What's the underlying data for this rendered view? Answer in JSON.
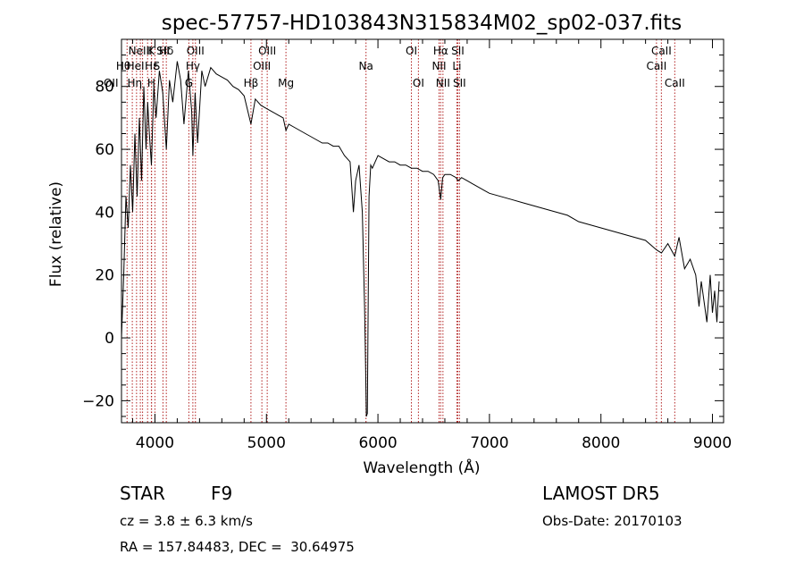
{
  "chart_data": {
    "type": "line",
    "title": "spec-57757-HD103843N315834M02_sp02-037.fits",
    "xlabel": "Wavelength (Å)",
    "ylabel": "Flux (relative)",
    "xlim": [
      3700,
      9100
    ],
    "ylim": [
      -27,
      95
    ],
    "x_ticks": [
      4000,
      5000,
      6000,
      7000,
      8000,
      9000
    ],
    "y_ticks": [
      -20,
      0,
      20,
      40,
      60,
      80
    ],
    "line_color": "#000000",
    "marker_color": "#b22222",
    "grid": false,
    "series": [
      {
        "x": [
          3700,
          3720,
          3740,
          3760,
          3780,
          3800,
          3820,
          3840,
          3860,
          3880,
          3900,
          3920,
          3935,
          3950,
          3968,
          3990,
          4010,
          4040,
          4070,
          4102,
          4130,
          4160,
          4200,
          4230,
          4260,
          4300,
          4330,
          4340,
          4360,
          4383,
          4420,
          4450,
          4500,
          4550,
          4600,
          4650,
          4700,
          4750,
          4800,
          4861,
          4900,
          4950,
          5000,
          5050,
          5100,
          5150,
          5175,
          5200,
          5250,
          5300,
          5350,
          5400,
          5450,
          5500,
          5550,
          5600,
          5650,
          5700,
          5750,
          5780,
          5800,
          5830,
          5860,
          5880,
          5890,
          5896,
          5905,
          5920,
          5935,
          5950,
          6000,
          6050,
          6100,
          6150,
          6200,
          6250,
          6300,
          6350,
          6400,
          6450,
          6500,
          6540,
          6563,
          6580,
          6600,
          6650,
          6700,
          6720,
          6750,
          6800,
          6850,
          6900,
          6950,
          7000,
          7100,
          7200,
          7300,
          7400,
          7500,
          7600,
          7700,
          7800,
          7900,
          8000,
          8100,
          8200,
          8300,
          8400,
          8498,
          8542,
          8600,
          8662,
          8700,
          8750,
          8800,
          8850,
          8880,
          8900,
          8950,
          8980,
          9000,
          9020,
          9040,
          9060
        ],
        "y": [
          0,
          20,
          45,
          35,
          55,
          40,
          65,
          45,
          70,
          50,
          80,
          60,
          75,
          65,
          55,
          80,
          70,
          85,
          78,
          60,
          82,
          75,
          88,
          82,
          68,
          85,
          72,
          58,
          78,
          62,
          85,
          80,
          86,
          84,
          83,
          82,
          80,
          79,
          77,
          68,
          76,
          74,
          73,
          72,
          71,
          70,
          66,
          68,
          67,
          66,
          65,
          64,
          63,
          62,
          62,
          61,
          61,
          58,
          56,
          40,
          50,
          55,
          40,
          10,
          -10,
          -25,
          -24,
          45,
          55,
          54,
          58,
          57,
          56,
          56,
          55,
          55,
          54,
          54,
          53,
          53,
          52,
          50,
          44,
          51,
          52,
          52,
          51,
          50,
          51,
          50,
          49,
          48,
          47,
          46,
          45,
          44,
          43,
          42,
          41,
          40,
          39,
          37,
          36,
          35,
          34,
          33,
          32,
          31,
          28,
          27,
          30,
          26,
          32,
          22,
          25,
          20,
          10,
          18,
          5,
          20,
          8,
          15,
          5,
          18
        ]
      }
    ],
    "lines": [
      {
        "x": 3750,
        "label": "OII",
        "row": 2,
        "dx": -18
      },
      {
        "x": 3797,
        "label": "Hθ",
        "row": 1,
        "dx": -10
      },
      {
        "x": 3835,
        "label": "Hη",
        "row": 2,
        "dx": -2
      },
      {
        "x": 3869,
        "label": "NeIII",
        "row": 0,
        "dx": 0
      },
      {
        "x": 3889,
        "label": "HeI",
        "row": 1,
        "dx": -8
      },
      {
        "x": 3934,
        "label": "K",
        "row": 0,
        "dx": 4
      },
      {
        "x": 3968,
        "label": "H",
        "row": 2,
        "dx": 0
      },
      {
        "x": 3970,
        "label": "Hε",
        "row": 1,
        "dx": 0
      },
      {
        "x": 4000,
        "label": "S",
        "row": 1,
        "dx": 2
      },
      {
        "x": 4072,
        "label": "SII",
        "row": 0,
        "dx": 0
      },
      {
        "x": 4102,
        "label": "Hδ",
        "row": 0,
        "dx": 0
      },
      {
        "x": 4304,
        "label": "G",
        "row": 2,
        "dx": 0
      },
      {
        "x": 4340,
        "label": "Hγ",
        "row": 1,
        "dx": 0
      },
      {
        "x": 4363,
        "label": "OIII",
        "row": 0,
        "dx": 0
      },
      {
        "x": 4861,
        "label": "Hβ",
        "row": 2,
        "dx": 0
      },
      {
        "x": 4959,
        "label": "OIII",
        "row": 1,
        "dx": 0
      },
      {
        "x": 5007,
        "label": "OIII",
        "row": 0,
        "dx": 0
      },
      {
        "x": 5175,
        "label": "Mg",
        "row": 2,
        "dx": 0
      },
      {
        "x": 5893,
        "label": "Na",
        "row": 1,
        "dx": 0
      },
      {
        "x": 6300,
        "label": "OI",
        "row": 0,
        "dx": 0
      },
      {
        "x": 6363,
        "label": "OI",
        "row": 2,
        "dx": 0
      },
      {
        "x": 6548,
        "label": "NII",
        "row": 1,
        "dx": 0
      },
      {
        "x": 6563,
        "label": "Hα",
        "row": 0,
        "dx": 0
      },
      {
        "x": 6583,
        "label": "NII",
        "row": 2,
        "dx": 0
      },
      {
        "x": 6708,
        "label": "Li",
        "row": 1,
        "dx": 0
      },
      {
        "x": 6716,
        "label": "SII",
        "row": 0,
        "dx": 0
      },
      {
        "x": 6731,
        "label": "SII",
        "row": 2,
        "dx": 0
      },
      {
        "x": 8498,
        "label": "CaII",
        "row": 1,
        "dx": 0
      },
      {
        "x": 8542,
        "label": "CaII",
        "row": 0,
        "dx": 0
      },
      {
        "x": 8662,
        "label": "CaII",
        "row": 2,
        "dx": 0
      }
    ]
  },
  "info": {
    "object_type": "STAR",
    "subclass": "F9",
    "survey": "LAMOST DR5",
    "cz": "cz = 3.8 ± 6.3 km/s",
    "obs_date": "Obs-Date: 20170103",
    "coords": "RA = 157.84483, DEC =  30.64975"
  }
}
